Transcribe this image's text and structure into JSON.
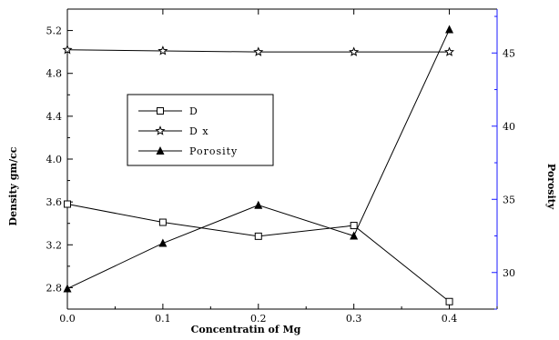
{
  "chart_data": {
    "type": "line",
    "xlabel": "Concentratin of Mg",
    "ylabel_left": "Density gm/cc",
    "ylabel_right": "Porosity",
    "x": [
      0.0,
      0.1,
      0.2,
      0.3,
      0.4
    ],
    "xlim": [
      0.0,
      0.45
    ],
    "x_ticks": [
      "0.0",
      "0.1",
      "0.2",
      "0.3",
      "0.4"
    ],
    "ylim_left": [
      2.6,
      5.4
    ],
    "y_ticks_left": [
      "2.8",
      "3.2",
      "3.6",
      "4.0",
      "4.4",
      "4.8",
      "5.2"
    ],
    "ylim_right": [
      27.5,
      48.0
    ],
    "y_ticks_right": [
      "30",
      "35",
      "40",
      "45"
    ],
    "grid": false,
    "legend_position": "upper-left inside plot",
    "right_axis_color": "#1a1aff",
    "series": [
      {
        "name": "D",
        "axis": "left",
        "marker": "open-square",
        "values": [
          3.58,
          3.41,
          3.28,
          3.38,
          2.67
        ]
      },
      {
        "name": "D x",
        "axis": "left",
        "marker": "star",
        "values": [
          5.02,
          5.01,
          5.0,
          5.0,
          5.0
        ]
      },
      {
        "name": "Porosity",
        "axis": "right",
        "marker": "filled-triangle",
        "values": [
          28.9,
          32.0,
          34.6,
          32.5,
          46.6
        ]
      }
    ]
  }
}
